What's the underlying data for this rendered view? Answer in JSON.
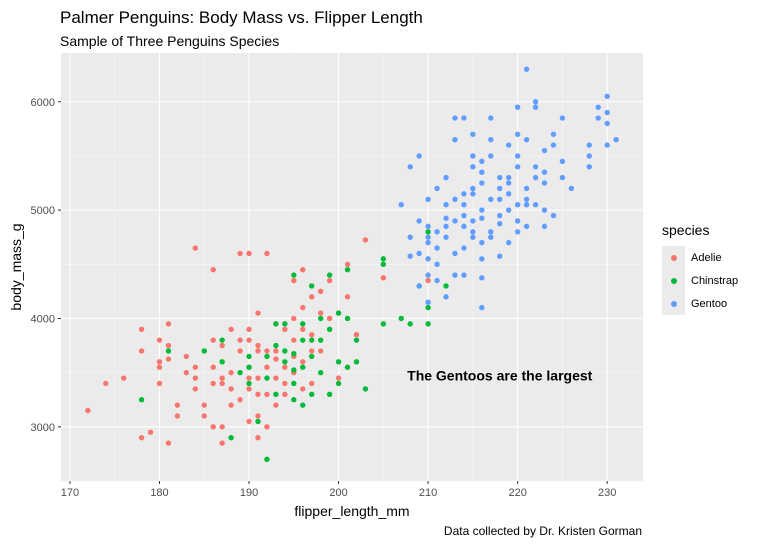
{
  "chart_data": {
    "type": "scatter",
    "title": "Palmer Penguins: Body Mass vs. Flipper Length",
    "subtitle": "Sample of Three Penguins Species",
    "xlabel": "flipper_length_mm",
    "ylabel": "body_mass_g",
    "caption": "Data collected by Dr. Kristen Gorman",
    "annotation": {
      "text": "The Gentoos are the largest",
      "x": 218,
      "y": 3475
    },
    "xlim": [
      169,
      234
    ],
    "ylim": [
      2500,
      6450
    ],
    "x_ticks": [
      170,
      180,
      190,
      200,
      210,
      220,
      230
    ],
    "y_ticks": [
      3000,
      4000,
      5000,
      6000
    ],
    "grid": true,
    "legend": {
      "title": "species",
      "position": "right"
    },
    "series": [
      {
        "name": "Adelie",
        "color": "#F8766D",
        "points": [
          [
            172,
            3150
          ],
          [
            174,
            3400
          ],
          [
            176,
            3450
          ],
          [
            178,
            3900
          ],
          [
            178,
            2900
          ],
          [
            178,
            3700
          ],
          [
            179,
            2950
          ],
          [
            180,
            3600
          ],
          [
            180,
            3800
          ],
          [
            180,
            3550
          ],
          [
            180,
            3400
          ],
          [
            181,
            3950
          ],
          [
            181,
            3750
          ],
          [
            181,
            2850
          ],
          [
            182,
            3200
          ],
          [
            182,
            3100
          ],
          [
            183,
            3500
          ],
          [
            184,
            3350
          ],
          [
            184,
            4650
          ],
          [
            184,
            3450
          ],
          [
            185,
            3700
          ],
          [
            185,
            3100
          ],
          [
            186,
            3800
          ],
          [
            186,
            3550
          ],
          [
            186,
            4450
          ],
          [
            186,
            3400
          ],
          [
            187,
            3750
          ],
          [
            187,
            3450
          ],
          [
            187,
            2850
          ],
          [
            187,
            3000
          ],
          [
            188,
            3900
          ],
          [
            188,
            3350
          ],
          [
            188,
            3200
          ],
          [
            189,
            3700
          ],
          [
            189,
            4600
          ],
          [
            189,
            3250
          ],
          [
            190,
            4600
          ],
          [
            190,
            3800
          ],
          [
            190,
            3550
          ],
          [
            190,
            3450
          ],
          [
            190,
            3050
          ],
          [
            190,
            3350
          ],
          [
            191,
            3750
          ],
          [
            191,
            4050
          ],
          [
            191,
            3450
          ],
          [
            191,
            3100
          ],
          [
            191,
            3700
          ],
          [
            191,
            3300
          ],
          [
            192,
            4600
          ],
          [
            192,
            3550
          ],
          [
            192,
            3700
          ],
          [
            192,
            3300
          ],
          [
            193,
            3950
          ],
          [
            193,
            3450
          ],
          [
            193,
            3700
          ],
          [
            193,
            3200
          ],
          [
            194,
            3550
          ],
          [
            194,
            3400
          ],
          [
            194,
            3900
          ],
          [
            194,
            3300
          ],
          [
            195,
            4350
          ],
          [
            195,
            4000
          ],
          [
            195,
            3650
          ],
          [
            195,
            3500
          ],
          [
            196,
            4100
          ],
          [
            196,
            4450
          ],
          [
            196,
            3900
          ],
          [
            196,
            3350
          ],
          [
            197,
            4200
          ],
          [
            197,
            3700
          ],
          [
            197,
            3400
          ],
          [
            198,
            4050
          ],
          [
            198,
            4250
          ],
          [
            198,
            3700
          ],
          [
            199,
            4350
          ],
          [
            199,
            4000
          ],
          [
            200,
            4050
          ],
          [
            200,
            3450
          ],
          [
            201,
            4500
          ],
          [
            201,
            4200
          ],
          [
            202,
            3850
          ],
          [
            203,
            4725
          ],
          [
            205,
            4375
          ],
          [
            210,
            4350
          ],
          [
            187,
            3400
          ],
          [
            189,
            3800
          ],
          [
            192,
            3000
          ],
          [
            183,
            3650
          ],
          [
            181,
            3625
          ],
          [
            185,
            3200
          ],
          [
            188,
            3500
          ],
          [
            193,
            3625
          ],
          [
            197,
            3850
          ],
          [
            196,
            3600
          ],
          [
            190,
            3900
          ],
          [
            191,
            2900
          ],
          [
            184,
            3550
          ],
          [
            186,
            3000
          ],
          [
            195,
            3800
          ]
        ]
      },
      {
        "name": "Chinstrap",
        "color": "#00BA38",
        "points": [
          [
            178,
            3250
          ],
          [
            181,
            3700
          ],
          [
            185,
            3700
          ],
          [
            187,
            3600
          ],
          [
            187,
            3800
          ],
          [
            188,
            2900
          ],
          [
            189,
            3500
          ],
          [
            190,
            3650
          ],
          [
            190,
            3400
          ],
          [
            190,
            3550
          ],
          [
            191,
            3050
          ],
          [
            192,
            3650
          ],
          [
            192,
            3450
          ],
          [
            193,
            3300
          ],
          [
            193,
            3750
          ],
          [
            194,
            3600
          ],
          [
            194,
            3700
          ],
          [
            195,
            4400
          ],
          [
            195,
            3400
          ],
          [
            195,
            3675
          ],
          [
            195,
            3250
          ],
          [
            196,
            3800
          ],
          [
            196,
            3950
          ],
          [
            196,
            3550
          ],
          [
            197,
            4300
          ],
          [
            197,
            3650
          ],
          [
            197,
            3300
          ],
          [
            198,
            4000
          ],
          [
            198,
            3500
          ],
          [
            199,
            4400
          ],
          [
            199,
            3900
          ],
          [
            200,
            4050
          ],
          [
            200,
            3400
          ],
          [
            201,
            4450
          ],
          [
            201,
            4000
          ],
          [
            201,
            3550
          ],
          [
            202,
            3800
          ],
          [
            203,
            3350
          ],
          [
            205,
            4550
          ],
          [
            205,
            4500
          ],
          [
            208,
            3950
          ],
          [
            209,
            4300
          ],
          [
            210,
            4800
          ],
          [
            210,
            3950
          ],
          [
            210,
            4100
          ],
          [
            212,
            4300
          ],
          [
            192,
            2700
          ],
          [
            193,
            3950
          ],
          [
            200,
            3600
          ],
          [
            198,
            3800
          ],
          [
            195,
            3525
          ],
          [
            196,
            3200
          ],
          [
            202,
            3600
          ],
          [
            197,
            3800
          ],
          [
            205,
            3950
          ],
          [
            207,
            4000
          ],
          [
            199,
            3300
          ],
          [
            194,
            3950
          ]
        ]
      },
      {
        "name": "Gentoo",
        "color": "#619CFF",
        "points": [
          [
            207,
            5050
          ],
          [
            208,
            4750
          ],
          [
            208,
            5400
          ],
          [
            209,
            4600
          ],
          [
            209,
            5500
          ],
          [
            209,
            4900
          ],
          [
            210,
            4400
          ],
          [
            210,
            4700
          ],
          [
            210,
            4850
          ],
          [
            210,
            4550
          ],
          [
            210,
            4150
          ],
          [
            211,
            4800
          ],
          [
            211,
            4650
          ],
          [
            211,
            5200
          ],
          [
            211,
            4500
          ],
          [
            212,
            5300
          ],
          [
            212,
            4925
          ],
          [
            212,
            4750
          ],
          [
            213,
            5850
          ],
          [
            213,
            4600
          ],
          [
            213,
            4900
          ],
          [
            213,
            5100
          ],
          [
            214,
            5150
          ],
          [
            214,
            4650
          ],
          [
            214,
            4400
          ],
          [
            214,
            4950
          ],
          [
            215,
            5400
          ],
          [
            215,
            5500
          ],
          [
            215,
            4900
          ],
          [
            215,
            5200
          ],
          [
            215,
            4750
          ],
          [
            216,
            5000
          ],
          [
            216,
            4100
          ],
          [
            216,
            5350
          ],
          [
            216,
            4700
          ],
          [
            216,
            4550
          ],
          [
            217,
            5100
          ],
          [
            217,
            4800
          ],
          [
            217,
            5500
          ],
          [
            218,
            5100
          ],
          [
            218,
            5300
          ],
          [
            218,
            4875
          ],
          [
            219,
            5250
          ],
          [
            219,
            5000
          ],
          [
            220,
            5500
          ],
          [
            220,
            5950
          ],
          [
            220,
            5700
          ],
          [
            221,
            5200
          ],
          [
            221,
            5650
          ],
          [
            222,
            5300
          ],
          [
            222,
            6000
          ],
          [
            222,
            5050
          ],
          [
            223,
            5250
          ],
          [
            223,
            5550
          ],
          [
            224,
            5700
          ],
          [
            225,
            5300
          ],
          [
            228,
            5600
          ],
          [
            229,
            5950
          ],
          [
            230,
            5800
          ],
          [
            230,
            5600
          ],
          [
            231,
            5650
          ],
          [
            221,
            6300
          ],
          [
            230,
            6050
          ],
          [
            214,
            5850
          ],
          [
            217,
            5850
          ],
          [
            212,
            4850
          ],
          [
            216,
            4925
          ],
          [
            209,
            4300
          ],
          [
            213,
            4400
          ],
          [
            218,
            5200
          ],
          [
            220,
            5400
          ],
          [
            222,
            5400
          ],
          [
            224,
            5600
          ],
          [
            226,
            5200
          ],
          [
            221,
            5050
          ],
          [
            223,
            5000
          ],
          [
            219,
            5600
          ],
          [
            215,
            5700
          ],
          [
            219,
            5300
          ],
          [
            220,
            5050
          ],
          [
            216,
            5450
          ],
          [
            217,
            5650
          ],
          [
            222,
            5950
          ],
          [
            225,
            5850
          ],
          [
            229,
            5850
          ],
          [
            210,
            4750
          ],
          [
            211,
            4350
          ],
          [
            212,
            4200
          ],
          [
            214,
            5050
          ],
          [
            215,
            4800
          ],
          [
            217,
            4750
          ],
          [
            218,
            4575
          ],
          [
            220,
            4900
          ],
          [
            221,
            5100
          ],
          [
            223,
            5350
          ],
          [
            224,
            4950
          ],
          [
            228,
            5400
          ],
          [
            228,
            5500
          ],
          [
            230,
            5900
          ],
          [
            225,
            5450
          ],
          [
            219,
            5150
          ],
          [
            216,
            5250
          ],
          [
            213,
            5650
          ],
          [
            212,
            5050
          ],
          [
            210,
            5100
          ],
          [
            215,
            5150
          ],
          [
            221,
            4850
          ],
          [
            218,
            4950
          ],
          [
            223,
            4850
          ],
          [
            216,
            4375
          ],
          [
            219,
            4700
          ],
          [
            220,
            4800
          ],
          [
            214,
            4850
          ],
          [
            208,
            4575
          ]
        ]
      }
    ]
  }
}
